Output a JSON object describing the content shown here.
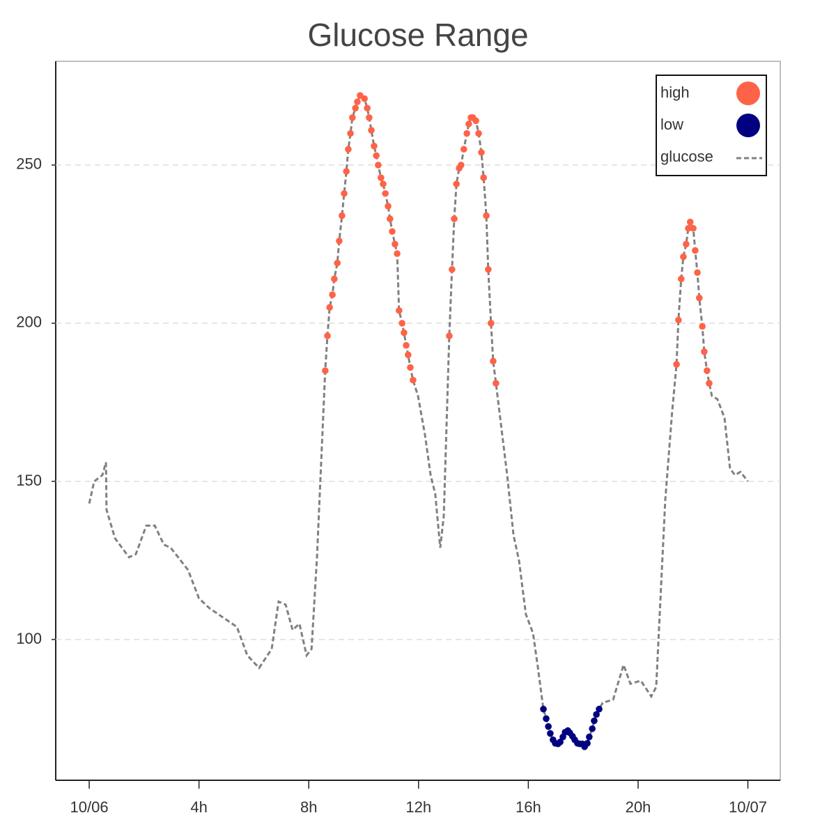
{
  "chart_data": {
    "type": "line",
    "title": "Glucose Range",
    "xlim": [
      -1.22,
      25.18
    ],
    "ylim": [
      55.5,
      282.8
    ],
    "xticks": [
      {
        "value": 0,
        "label": "10/06"
      },
      {
        "value": 4,
        "label": "4h"
      },
      {
        "value": 8,
        "label": "8h"
      },
      {
        "value": 12,
        "label": "12h"
      },
      {
        "value": 16,
        "label": "16h"
      },
      {
        "value": 20,
        "label": "20h"
      },
      {
        "value": 24,
        "label": "10/07"
      }
    ],
    "yticks": [
      100,
      150,
      200,
      250
    ],
    "grid": true,
    "legend": "upper right",
    "series": [
      {
        "name": "high",
        "kind": "dots",
        "color": "#ff6347",
        "x": [
          8.6,
          8.68,
          8.76,
          8.86,
          8.93,
          9.04,
          9.11,
          9.21,
          9.29,
          9.37,
          9.44,
          9.52,
          9.59,
          9.7,
          9.77,
          9.87,
          10.03,
          10.13,
          10.2,
          10.28,
          10.38,
          10.46,
          10.53,
          10.63,
          10.71,
          10.79,
          10.89,
          10.96,
          11.04,
          11.14,
          11.22,
          11.29,
          11.4,
          11.47,
          11.55,
          11.62,
          11.7,
          11.8,
          13.12,
          13.22,
          13.3,
          13.38,
          13.48,
          13.55,
          13.65,
          13.76,
          13.83,
          13.91,
          13.98,
          14.09,
          14.19,
          14.29,
          14.37,
          14.47,
          14.54,
          14.64,
          14.72,
          14.82,
          21.4,
          21.47,
          21.57,
          21.65,
          21.75,
          21.83,
          21.9,
          22.01,
          22.08,
          22.16,
          22.23,
          22.34,
          22.41,
          22.51,
          22.59
        ],
        "values": [
          185,
          196,
          205,
          209,
          214,
          219,
          226,
          234,
          241,
          248,
          255,
          260,
          265,
          268,
          270,
          272,
          271,
          268,
          265,
          261,
          256,
          253,
          250,
          246,
          244,
          241,
          237,
          233,
          229,
          225,
          222,
          204,
          200,
          197,
          193,
          190,
          186,
          182,
          196,
          217,
          233,
          244,
          249,
          250,
          255,
          260,
          263,
          265,
          265,
          264,
          260,
          254,
          246,
          234,
          217,
          200,
          188,
          181,
          187,
          201,
          214,
          221,
          225,
          230,
          232,
          230,
          223,
          216,
          208,
          199,
          191,
          185,
          181
        ]
      },
      {
        "name": "low",
        "kind": "dots",
        "color": "#000080",
        "x": [
          16.55,
          16.65,
          16.73,
          16.8,
          16.9,
          16.98,
          17.08,
          17.16,
          17.26,
          17.34,
          17.44,
          17.51,
          17.61,
          17.69,
          17.79,
          17.87,
          17.97,
          18.05,
          18.15,
          18.22,
          18.33,
          18.4,
          18.48,
          18.58
        ],
        "values": [
          78,
          75,
          72.5,
          70.3,
          68.3,
          67.2,
          67,
          67.6,
          69.2,
          70.7,
          71.2,
          70.5,
          69.4,
          68.3,
          67.2,
          67,
          67,
          66.1,
          67.2,
          69.2,
          71.8,
          74.3,
          76.3,
          78
        ]
      },
      {
        "name": "glucose",
        "kind": "dashed-line",
        "color": "#808080",
        "x": [
          0,
          0.18,
          0.48,
          0.61,
          0.63,
          0.94,
          1.45,
          1.7,
          2.08,
          2.39,
          2.72,
          2.97,
          3.6,
          4.0,
          4.37,
          4.87,
          5.38,
          5.76,
          6.19,
          6.65,
          6.9,
          7.16,
          7.41,
          7.66,
          7.92,
          8.1,
          8.3,
          8.6,
          8.68,
          8.76,
          8.86,
          8.93,
          9.04,
          9.11,
          9.21,
          9.29,
          9.37,
          9.44,
          9.52,
          9.59,
          9.7,
          9.77,
          9.87,
          10.03,
          10.13,
          10.2,
          10.28,
          10.38,
          10.46,
          10.53,
          10.63,
          10.71,
          10.79,
          10.89,
          10.96,
          11.04,
          11.14,
          11.22,
          11.29,
          11.4,
          11.47,
          11.55,
          11.62,
          11.7,
          11.8,
          11.98,
          12.23,
          12.44,
          12.61,
          12.79,
          12.92,
          13.12,
          13.22,
          13.3,
          13.38,
          13.48,
          13.55,
          13.65,
          13.76,
          13.83,
          13.91,
          13.98,
          14.09,
          14.19,
          14.29,
          14.37,
          14.47,
          14.54,
          14.64,
          14.72,
          14.82,
          15.03,
          15.23,
          15.46,
          15.66,
          15.91,
          16.17,
          16.35,
          16.55,
          16.65,
          16.73,
          16.8,
          16.9,
          16.98,
          17.08,
          17.16,
          17.26,
          17.34,
          17.44,
          17.51,
          17.61,
          17.69,
          17.79,
          17.87,
          17.97,
          18.05,
          18.15,
          18.22,
          18.33,
          18.4,
          18.48,
          18.58,
          18.71,
          19.09,
          19.47,
          19.72,
          20.1,
          20.48,
          20.66,
          20.99,
          21.24,
          21.4,
          21.47,
          21.57,
          21.65,
          21.75,
          21.83,
          21.9,
          22.01,
          22.08,
          22.16,
          22.23,
          22.34,
          22.41,
          22.51,
          22.59,
          22.69,
          22.89,
          23.15,
          23.35,
          23.53,
          23.73,
          24.0
        ],
        "values": [
          143,
          150,
          152,
          156,
          141,
          132,
          126,
          127,
          136,
          136,
          130,
          129,
          122,
          113,
          110,
          107,
          104,
          95,
          91,
          97,
          112,
          111,
          103,
          105,
          95,
          97,
          126,
          185,
          196,
          205,
          209,
          214,
          219,
          226,
          234,
          241,
          248,
          255,
          260,
          265,
          268,
          270,
          272,
          271,
          268,
          265,
          261,
          256,
          253,
          250,
          246,
          244,
          241,
          237,
          233,
          229,
          225,
          222,
          204,
          200,
          197,
          193,
          190,
          186,
          182,
          177,
          165,
          152,
          146,
          129,
          139,
          196,
          217,
          233,
          244,
          249,
          250,
          255,
          260,
          263,
          265,
          265,
          264,
          260,
          254,
          246,
          234,
          217,
          200,
          188,
          181,
          166,
          152,
          133,
          125,
          108,
          102,
          91,
          78,
          75,
          72.5,
          70.3,
          68.3,
          67.2,
          67,
          67.6,
          69.2,
          70.7,
          71.2,
          70.5,
          69.4,
          68.3,
          67.2,
          67,
          67,
          66.1,
          67.2,
          69.2,
          71.8,
          74.3,
          76.3,
          78,
          80,
          81,
          92,
          86,
          87,
          82,
          85,
          144,
          172,
          187,
          201,
          214,
          221,
          225,
          230,
          232,
          230,
          223,
          216,
          208,
          199,
          191,
          185,
          181,
          177,
          176,
          170,
          154,
          152,
          153,
          150
        ]
      }
    ]
  }
}
